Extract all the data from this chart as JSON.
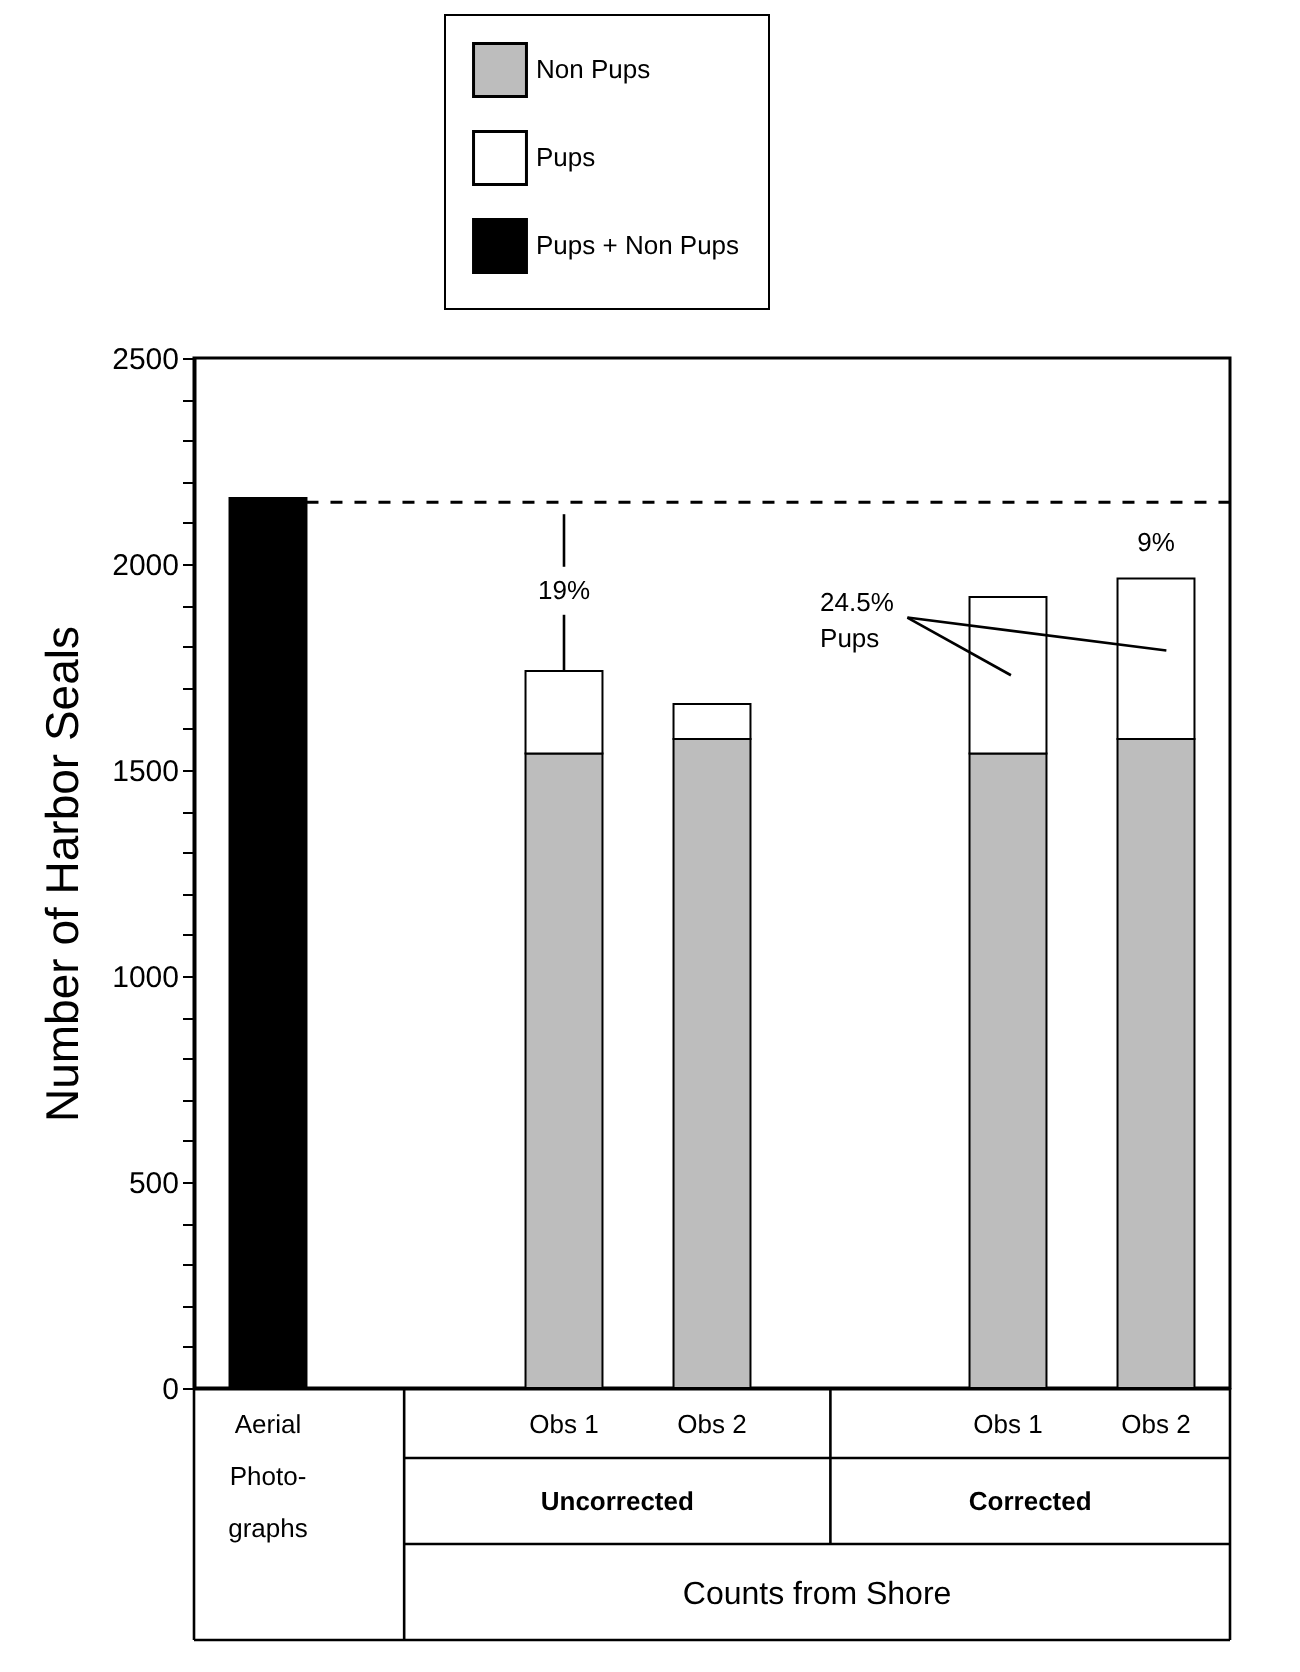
{
  "chart_data": {
    "type": "bar",
    "ylabel": "Number of Harbor Seals",
    "categories": [
      "Aerial Photo-graphs",
      null,
      "Obs 1",
      "Obs 2",
      null,
      "Obs 1",
      "Obs 2"
    ],
    "series": [
      {
        "name": "Non Pups",
        "color": "#bdbdbd",
        "values": [
          null,
          null,
          1540,
          1575,
          null,
          1540,
          1575
        ]
      },
      {
        "name": "Pups",
        "color": "#ffffff",
        "values": [
          null,
          null,
          200,
          85,
          null,
          380,
          390
        ]
      },
      {
        "name": "Pups + Non Pups",
        "color": "#000000",
        "values": [
          2160,
          null,
          null,
          null,
          null,
          null,
          null
        ]
      }
    ],
    "stacked": true,
    "ylim": [
      0,
      2500
    ],
    "yticks": [
      0,
      {
        "value": 100,
        "label": null
      },
      {
        "value": 200,
        "label": null
      },
      {
        "value": 300,
        "label": null
      },
      {
        "value": 400,
        "label": null
      },
      500,
      {
        "value": 600,
        "label": null
      },
      {
        "value": 700,
        "label": null
      },
      {
        "value": 800,
        "label": null
      },
      {
        "value": 900,
        "label": null
      },
      1000,
      {
        "value": 1100,
        "label": null
      },
      {
        "value": 1200,
        "label": null
      },
      {
        "value": 1300,
        "label": null
      },
      {
        "value": 1400,
        "label": null
      },
      1500,
      {
        "value": 1600,
        "label": null
      },
      {
        "value": 1700,
        "label": null
      },
      {
        "value": 1800,
        "label": null
      },
      {
        "value": 1900,
        "label": null
      },
      2000,
      {
        "value": 2100,
        "label": null
      },
      {
        "value": 2200,
        "label": null
      },
      {
        "value": 2300,
        "label": null
      },
      {
        "value": 2400,
        "label": null
      },
      2500
    ],
    "ref_lines": [
      {
        "axis": "y",
        "value": 2150,
        "line_style": "dashed"
      }
    ],
    "legend": "top",
    "annotations": [
      {
        "text": "19%",
        "x": "Obs 1",
        "y": 1740
      },
      "24.5% Pups",
      "9%",
      "Uncorrected",
      "Corrected",
      "Counts from Shore"
    ]
  }
}
